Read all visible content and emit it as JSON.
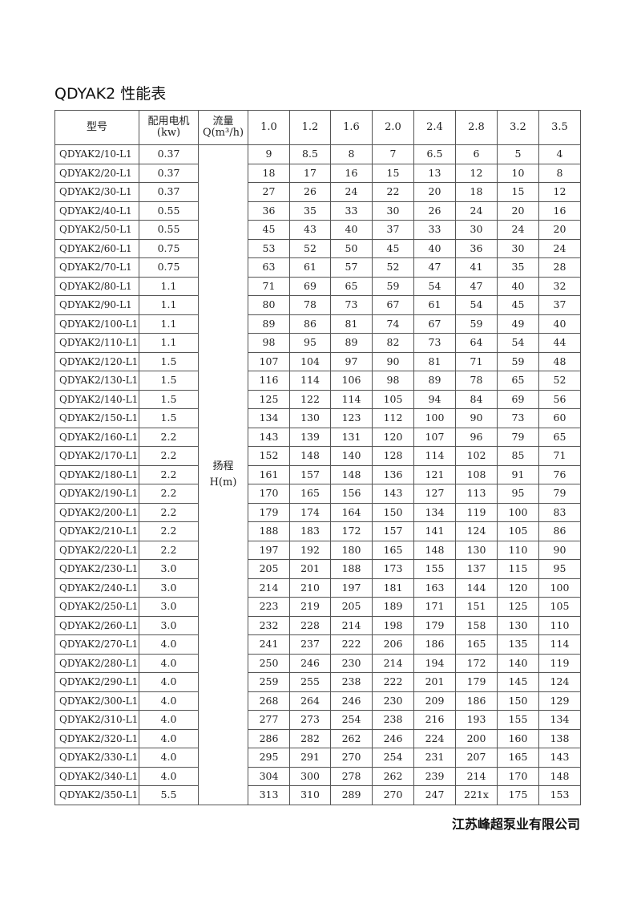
{
  "title": "QDYAK2 性能表",
  "header": {
    "model": "型号",
    "motor_line1": "配用电机",
    "motor_line2": "(kw)",
    "flow_line1": "流量",
    "flow_line2": "Q(m³/h)",
    "flows": [
      "1.0",
      "1.2",
      "1.6",
      "2.0",
      "2.4",
      "2.8",
      "3.2",
      "3.5"
    ]
  },
  "head_label_line1": "扬程",
  "head_label_line2": "H(m)",
  "rows": [
    {
      "model": "QDYAK2/10-L1",
      "kw": "0.37",
      "h": [
        "9",
        "8.5",
        "8",
        "7",
        "6.5",
        "6",
        "5",
        "4"
      ]
    },
    {
      "model": "QDYAK2/20-L1",
      "kw": "0.37",
      "h": [
        "18",
        "17",
        "16",
        "15",
        "13",
        "12",
        "10",
        "8"
      ]
    },
    {
      "model": "QDYAK2/30-L1",
      "kw": "0.37",
      "h": [
        "27",
        "26",
        "24",
        "22",
        "20",
        "18",
        "15",
        "12"
      ]
    },
    {
      "model": "QDYAK2/40-L1",
      "kw": "0.55",
      "h": [
        "36",
        "35",
        "33",
        "30",
        "26",
        "24",
        "20",
        "16"
      ]
    },
    {
      "model": "QDYAK2/50-L1",
      "kw": "0.55",
      "h": [
        "45",
        "43",
        "40",
        "37",
        "33",
        "30",
        "24",
        "20"
      ]
    },
    {
      "model": "QDYAK2/60-L1",
      "kw": "0.75",
      "h": [
        "53",
        "52",
        "50",
        "45",
        "40",
        "36",
        "30",
        "24"
      ]
    },
    {
      "model": "QDYAK2/70-L1",
      "kw": "0.75",
      "h": [
        "63",
        "61",
        "57",
        "52",
        "47",
        "41",
        "35",
        "28"
      ]
    },
    {
      "model": "QDYAK2/80-L1",
      "kw": "1.1",
      "h": [
        "71",
        "69",
        "65",
        "59",
        "54",
        "47",
        "40",
        "32"
      ]
    },
    {
      "model": "QDYAK2/90-L1",
      "kw": "1.1",
      "h": [
        "80",
        "78",
        "73",
        "67",
        "61",
        "54",
        "45",
        "37"
      ]
    },
    {
      "model": "QDYAK2/100-L1",
      "kw": "1.1",
      "h": [
        "89",
        "86",
        "81",
        "74",
        "67",
        "59",
        "49",
        "40"
      ]
    },
    {
      "model": "QDYAK2/110-L1",
      "kw": "1.1",
      "h": [
        "98",
        "95",
        "89",
        "82",
        "73",
        "64",
        "54",
        "44"
      ]
    },
    {
      "model": "QDYAK2/120-L1",
      "kw": "1.5",
      "h": [
        "107",
        "104",
        "97",
        "90",
        "81",
        "71",
        "59",
        "48"
      ]
    },
    {
      "model": "QDYAK2/130-L1",
      "kw": "1.5",
      "h": [
        "116",
        "114",
        "106",
        "98",
        "89",
        "78",
        "65",
        "52"
      ]
    },
    {
      "model": "QDYAK2/140-L1",
      "kw": "1.5",
      "h": [
        "125",
        "122",
        "114",
        "105",
        "94",
        "84",
        "69",
        "56"
      ]
    },
    {
      "model": "QDYAK2/150-L1",
      "kw": "1.5",
      "h": [
        "134",
        "130",
        "123",
        "112",
        "100",
        "90",
        "73",
        "60"
      ]
    },
    {
      "model": "QDYAK2/160-L1",
      "kw": "2.2",
      "h": [
        "143",
        "139",
        "131",
        "120",
        "107",
        "96",
        "79",
        "65"
      ]
    },
    {
      "model": "QDYAK2/170-L1",
      "kw": "2.2",
      "h": [
        "152",
        "148",
        "140",
        "128",
        "114",
        "102",
        "85",
        "71"
      ]
    },
    {
      "model": "QDYAK2/180-L1",
      "kw": "2.2",
      "h": [
        "161",
        "157",
        "148",
        "136",
        "121",
        "108",
        "91",
        "76"
      ]
    },
    {
      "model": "QDYAK2/190-L1",
      "kw": "2.2",
      "h": [
        "170",
        "165",
        "156",
        "143",
        "127",
        "113",
        "95",
        "79"
      ]
    },
    {
      "model": "QDYAK2/200-L1",
      "kw": "2.2",
      "h": [
        "179",
        "174",
        "164",
        "150",
        "134",
        "119",
        "100",
        "83"
      ]
    },
    {
      "model": "QDYAK2/210-L1",
      "kw": "2.2",
      "h": [
        "188",
        "183",
        "172",
        "157",
        "141",
        "124",
        "105",
        "86"
      ]
    },
    {
      "model": "QDYAK2/220-L1",
      "kw": "2.2",
      "h": [
        "197",
        "192",
        "180",
        "165",
        "148",
        "130",
        "110",
        "90"
      ]
    },
    {
      "model": "QDYAK2/230-L1",
      "kw": "3.0",
      "h": [
        "205",
        "201",
        "188",
        "173",
        "155",
        "137",
        "115",
        "95"
      ]
    },
    {
      "model": "QDYAK2/240-L1",
      "kw": "3.0",
      "h": [
        "214",
        "210",
        "197",
        "181",
        "163",
        "144",
        "120",
        "100"
      ]
    },
    {
      "model": "QDYAK2/250-L1",
      "kw": "3.0",
      "h": [
        "223",
        "219",
        "205",
        "189",
        "171",
        "151",
        "125",
        "105"
      ]
    },
    {
      "model": "QDYAK2/260-L1",
      "kw": "3.0",
      "h": [
        "232",
        "228",
        "214",
        "198",
        "179",
        "158",
        "130",
        "110"
      ]
    },
    {
      "model": "QDYAK2/270-L1",
      "kw": "4.0",
      "h": [
        "241",
        "237",
        "222",
        "206",
        "186",
        "165",
        "135",
        "114"
      ]
    },
    {
      "model": "QDYAK2/280-L1",
      "kw": "4.0",
      "h": [
        "250",
        "246",
        "230",
        "214",
        "194",
        "172",
        "140",
        "119"
      ]
    },
    {
      "model": "QDYAK2/290-L1",
      "kw": "4.0",
      "h": [
        "259",
        "255",
        "238",
        "222",
        "201",
        "179",
        "145",
        "124"
      ]
    },
    {
      "model": "QDYAK2/300-L1",
      "kw": "4.0",
      "h": [
        "268",
        "264",
        "246",
        "230",
        "209",
        "186",
        "150",
        "129"
      ]
    },
    {
      "model": "QDYAK2/310-L1",
      "kw": "4.0",
      "h": [
        "277",
        "273",
        "254",
        "238",
        "216",
        "193",
        "155",
        "134"
      ]
    },
    {
      "model": "QDYAK2/320-L1",
      "kw": "4.0",
      "h": [
        "286",
        "282",
        "262",
        "246",
        "224",
        "200",
        "160",
        "138"
      ]
    },
    {
      "model": "QDYAK2/330-L1",
      "kw": "4.0",
      "h": [
        "295",
        "291",
        "270",
        "254",
        "231",
        "207",
        "165",
        "143"
      ]
    },
    {
      "model": "QDYAK2/340-L1",
      "kw": "4.0",
      "h": [
        "304",
        "300",
        "278",
        "262",
        "239",
        "214",
        "170",
        "148"
      ]
    },
    {
      "model": "QDYAK2/350-L1",
      "kw": "5.5",
      "h": [
        "313",
        "310",
        "289",
        "270",
        "247",
        "221x",
        "175",
        "153"
      ]
    }
  ],
  "footer": "江苏峰超泵业有限公司"
}
